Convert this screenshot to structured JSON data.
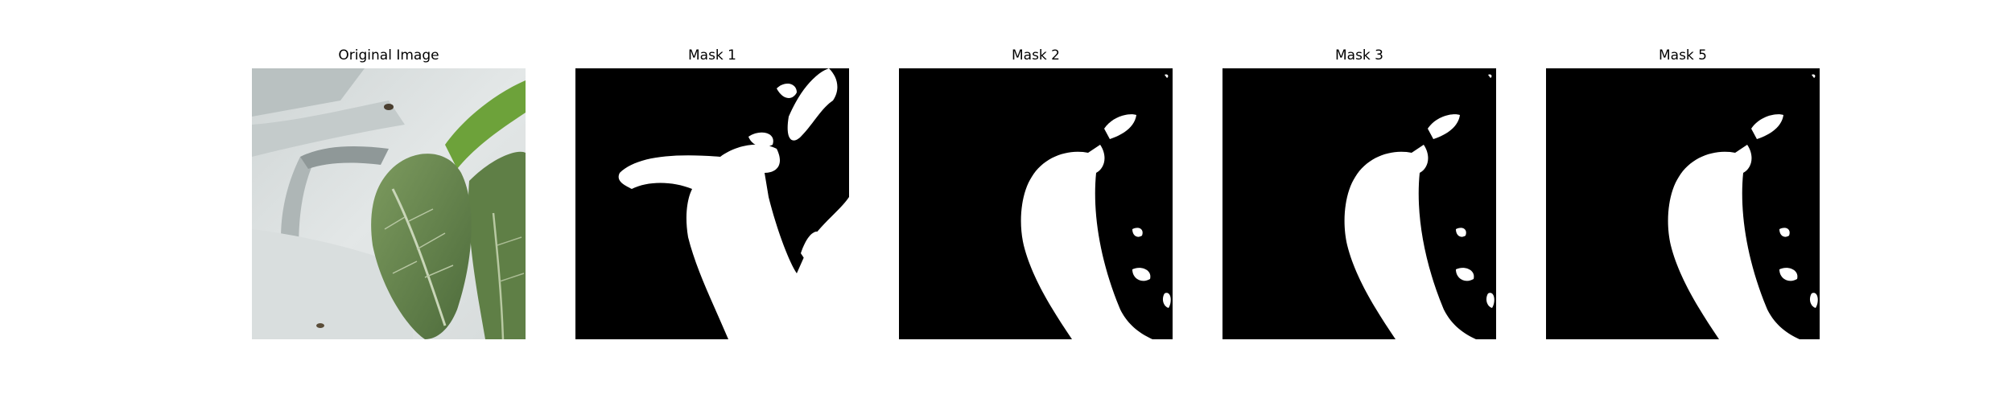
{
  "figure": {
    "panels": [
      {
        "title": "Original Image",
        "kind": "photo",
        "subject": "green leafy plant against white plastic sheeting"
      },
      {
        "title": "Mask 1",
        "kind": "mask",
        "mask_variant": "coarse"
      },
      {
        "title": "Mask 2",
        "kind": "mask",
        "mask_variant": "refined"
      },
      {
        "title": "Mask 3",
        "kind": "mask",
        "mask_variant": "refined"
      },
      {
        "title": "Mask 5",
        "kind": "mask",
        "mask_variant": "refined"
      }
    ]
  },
  "colors": {
    "mask_background": "#000000",
    "mask_foreground": "#ffffff",
    "sheet_light": "#dfe3e3",
    "sheet_mid": "#c9cfcf",
    "sheet_shadow": "#9aa3a3",
    "leaf_dark": "#4d6b3b",
    "leaf_mid": "#6f8d55",
    "leaf_light": "#98b37a",
    "leaf_bright": "#6da23a"
  }
}
